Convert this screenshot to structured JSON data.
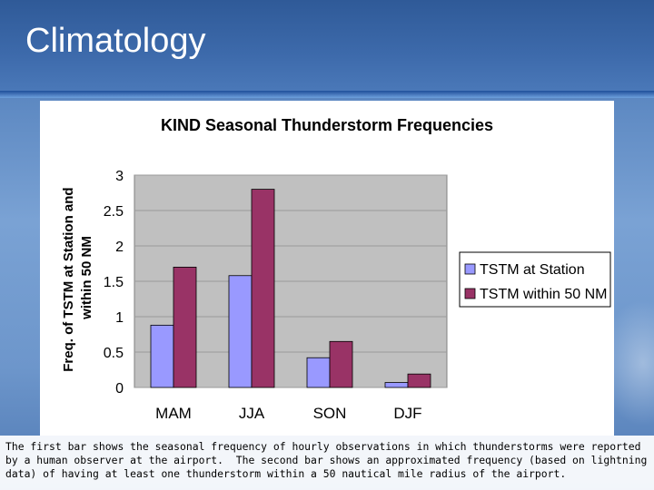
{
  "slide": {
    "title": "Climatology",
    "caption": "The first bar shows the seasonal frequency of hourly observations in which thunderstorms were reported by a human observer at the airport.  The second bar shows an approximated frequency (based on lightning data) of having at least one thunderstorm within a 50 nautical mile radius of the airport."
  },
  "colors": {
    "series1": "#9999ff",
    "series2": "#993366",
    "plot_bg": "#c0c0c0"
  },
  "chart_data": {
    "type": "bar",
    "title": "KIND Seasonal Thunderstorm Frequencies",
    "xlabel": "",
    "ylabel": "Freq. of TSTM at Station and within 50 NM",
    "categories": [
      "MAM",
      "JJA",
      "SON",
      "DJF"
    ],
    "series": [
      {
        "name": "TSTM at Station",
        "values": [
          0.88,
          1.58,
          0.42,
          0.07
        ]
      },
      {
        "name": "TSTM within 50 NM",
        "values": [
          1.7,
          2.8,
          0.65,
          0.19
        ]
      }
    ],
    "ylim": [
      0,
      3
    ],
    "yticks": [
      0,
      0.5,
      1,
      1.5,
      2,
      2.5,
      3
    ],
    "ytick_labels": [
      "0",
      "0.5",
      "1",
      "1.5",
      "2",
      "2.5",
      "3"
    ],
    "legend_position": "right"
  }
}
